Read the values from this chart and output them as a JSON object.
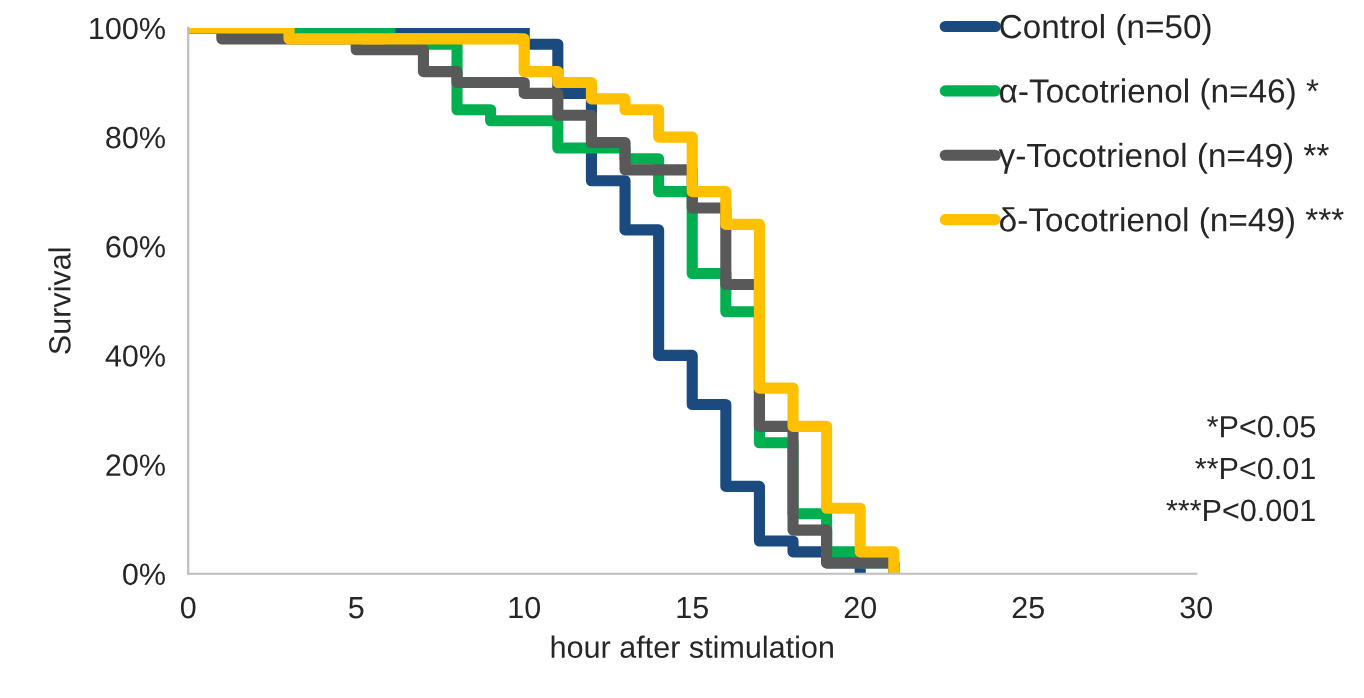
{
  "chart_data": {
    "type": "step",
    "xlabel": "hour after stimulation",
    "ylabel": "Survival",
    "xlim": [
      0,
      30
    ],
    "xticks": [
      0,
      5,
      10,
      15,
      20,
      25,
      30
    ],
    "ylim": [
      0,
      100
    ],
    "yticks": [
      {
        "value": 0,
        "label": "0%"
      },
      {
        "value": 20,
        "label": "20%"
      },
      {
        "value": 40,
        "label": "40%"
      },
      {
        "value": 60,
        "label": "60%"
      },
      {
        "value": 80,
        "label": "80%"
      },
      {
        "value": 100,
        "label": "100%"
      }
    ],
    "grid": false,
    "legend": "top right",
    "line_style": "solid",
    "marker": "none",
    "series": [
      {
        "name": "Control (n=50)",
        "color": "#1b4a7e",
        "x": [
          0,
          10,
          11,
          12,
          13,
          14,
          15,
          16,
          17,
          18,
          19,
          20
        ],
        "values": [
          100,
          97,
          88,
          72,
          63,
          40,
          31,
          16,
          6,
          4,
          2,
          0
        ]
      },
      {
        "name": "α-Tocotrienol (n=46) *",
        "color": "#00b050",
        "x": [
          0,
          6,
          8,
          9,
          11,
          13,
          14,
          15,
          16,
          17,
          18,
          19,
          20,
          21
        ],
        "values": [
          100,
          97,
          85,
          83,
          78,
          76,
          70,
          55,
          48,
          24,
          11,
          4,
          2,
          0
        ]
      },
      {
        "name": "γ-Tocotrienol (n=49) **",
        "color": "#595959",
        "x": [
          0,
          1,
          5,
          7,
          8,
          10,
          11,
          12,
          13,
          15,
          16,
          17,
          18,
          19,
          21
        ],
        "values": [
          100,
          98,
          96,
          92,
          90,
          88,
          84,
          79,
          74,
          67,
          53,
          27,
          8,
          2,
          0
        ]
      },
      {
        "name": "δ-Tocotrienol (n=49) ***",
        "color": "#ffc000",
        "x": [
          0,
          3,
          10,
          11,
          12,
          13,
          14,
          15,
          16,
          17,
          18,
          19,
          20,
          21
        ],
        "values": [
          100,
          98,
          92,
          90,
          87,
          85,
          80,
          70,
          64,
          34,
          27,
          12,
          4,
          0
        ]
      }
    ],
    "annotations": [
      "*P<0.05",
      "**P<0.01",
      "***P<0.001"
    ]
  }
}
